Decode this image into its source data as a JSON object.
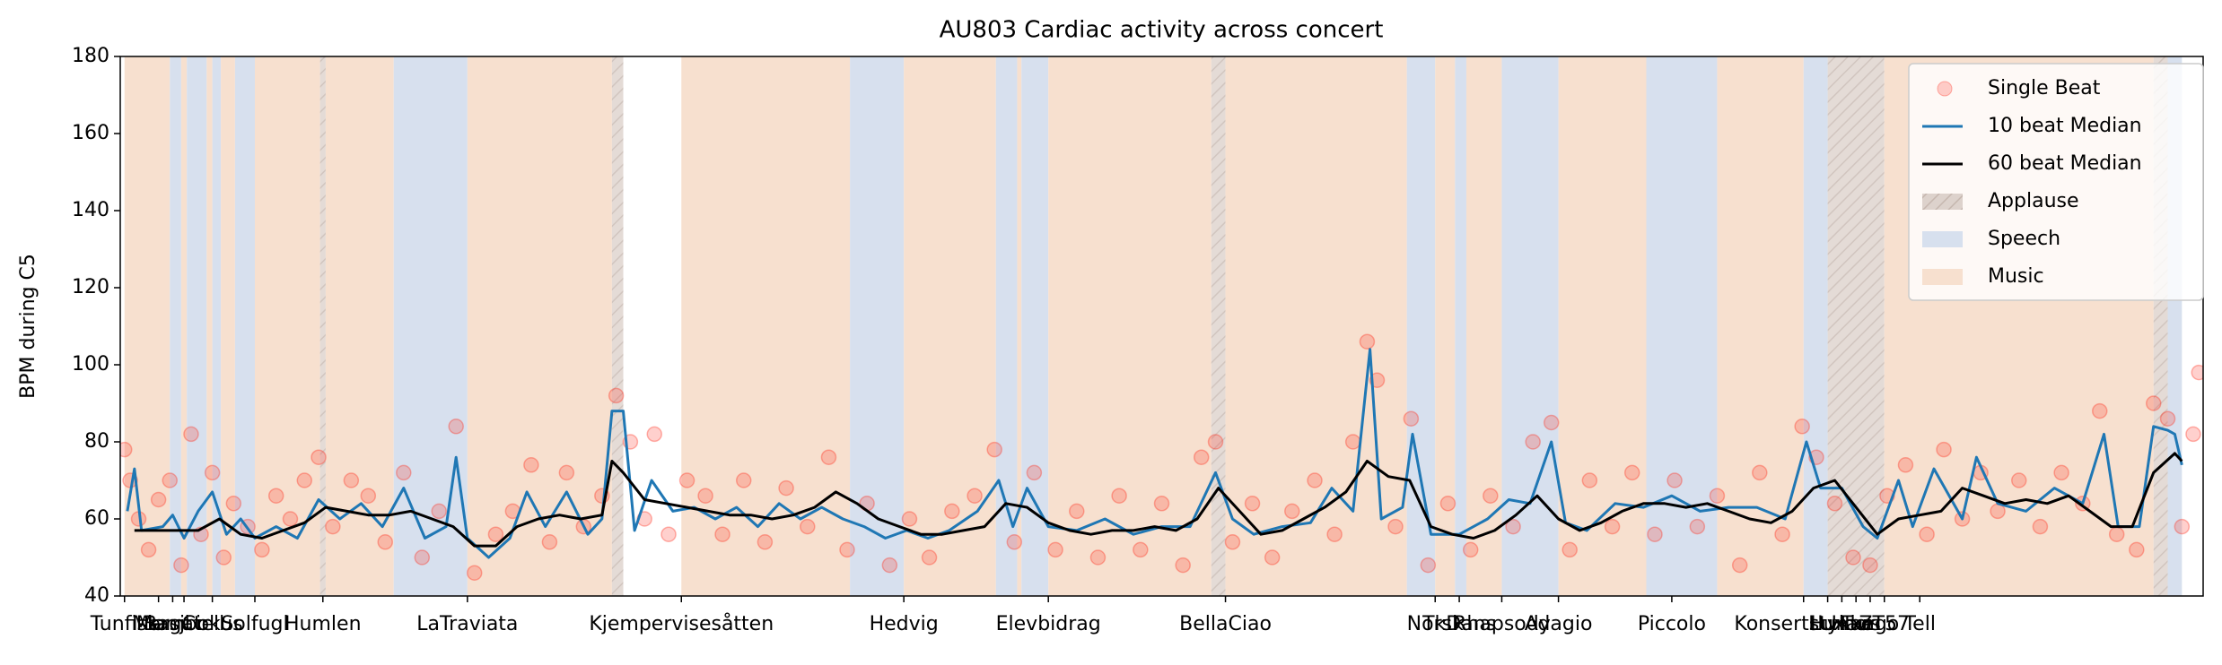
{
  "chart_data": {
    "type": "line",
    "title": "AU803 Cardiac activity across concert",
    "y_label": "BPM during C5",
    "ylim": [
      40,
      180
    ],
    "yticks": [
      40,
      60,
      80,
      100,
      120,
      140,
      160,
      180
    ],
    "xlim": [
      85,
      1555
    ],
    "xticks": [
      {
        "value": 88,
        "label": "Tunfisk"
      },
      {
        "value": 112,
        "label": "Marsj"
      },
      {
        "value": 122,
        "label": "Mambo"
      },
      {
        "value": 130,
        "label": "Bagatell"
      },
      {
        "value": 150,
        "label": "Cirkus"
      },
      {
        "value": 180,
        "label": "Solfugl"
      },
      {
        "value": 228,
        "label": "Humlen"
      },
      {
        "value": 330,
        "label": "LaTraviata"
      },
      {
        "value": 481,
        "label": "Kjempervisesåtten"
      },
      {
        "value": 638,
        "label": "Hedvig"
      },
      {
        "value": 740,
        "label": "Elevbidrag"
      },
      {
        "value": 865,
        "label": "BellaCiao"
      },
      {
        "value": 1013,
        "label": "Norsk"
      },
      {
        "value": 1030,
        "label": "TkDans"
      },
      {
        "value": 1060,
        "label": "Rhapsody"
      },
      {
        "value": 1100,
        "label": "Adagio"
      },
      {
        "value": 1180,
        "label": "Piccolo"
      },
      {
        "value": 1273,
        "label": "Konsertstykke"
      },
      {
        "value": 1290,
        "label": "Lux"
      },
      {
        "value": 1300,
        "label": "Humor"
      },
      {
        "value": 1310,
        "label": "Haus"
      },
      {
        "value": 1320,
        "label": "Tango"
      },
      {
        "value": 1330,
        "label": "ZT57"
      },
      {
        "value": 1355,
        "label": "Tell"
      }
    ],
    "region_types": [
      {
        "name": "Applause",
        "color": "#d9cbc4"
      },
      {
        "name": "Speech",
        "color": "#d7e0ee"
      },
      {
        "name": "Music",
        "color": "#f7e0cf"
      }
    ],
    "regions": [
      {
        "type": 2,
        "start": 88,
        "end": 120
      },
      {
        "type": 1,
        "start": 120,
        "end": 128
      },
      {
        "type": 2,
        "start": 128,
        "end": 132
      },
      {
        "type": 1,
        "start": 132,
        "end": 146
      },
      {
        "type": 2,
        "start": 146,
        "end": 150
      },
      {
        "type": 1,
        "start": 150,
        "end": 156
      },
      {
        "type": 2,
        "start": 156,
        "end": 166
      },
      {
        "type": 1,
        "start": 166,
        "end": 180
      },
      {
        "type": 2,
        "start": 180,
        "end": 226
      },
      {
        "type": 0,
        "start": 226,
        "end": 230
      },
      {
        "type": 2,
        "start": 230,
        "end": 278
      },
      {
        "type": 1,
        "start": 278,
        "end": 330
      },
      {
        "type": 2,
        "start": 330,
        "end": 432
      },
      {
        "type": 0,
        "start": 432,
        "end": 440
      },
      {
        "type": 2,
        "start": 481,
        "end": 600
      },
      {
        "type": 1,
        "start": 600,
        "end": 638
      },
      {
        "type": 2,
        "start": 638,
        "end": 703
      },
      {
        "type": 1,
        "start": 703,
        "end": 718
      },
      {
        "type": 2,
        "start": 718,
        "end": 721
      },
      {
        "type": 1,
        "start": 721,
        "end": 740
      },
      {
        "type": 2,
        "start": 740,
        "end": 855
      },
      {
        "type": 0,
        "start": 855,
        "end": 865
      },
      {
        "type": 2,
        "start": 865,
        "end": 993
      },
      {
        "type": 1,
        "start": 993,
        "end": 1013
      },
      {
        "type": 2,
        "start": 1013,
        "end": 1027
      },
      {
        "type": 1,
        "start": 1027,
        "end": 1035
      },
      {
        "type": 2,
        "start": 1035,
        "end": 1060
      },
      {
        "type": 1,
        "start": 1060,
        "end": 1100
      },
      {
        "type": 2,
        "start": 1100,
        "end": 1162
      },
      {
        "type": 1,
        "start": 1162,
        "end": 1212
      },
      {
        "type": 2,
        "start": 1212,
        "end": 1273
      },
      {
        "type": 1,
        "start": 1273,
        "end": 1290
      },
      {
        "type": 0,
        "start": 1290,
        "end": 1330
      },
      {
        "type": 2,
        "start": 1330,
        "end": 1520
      },
      {
        "type": 0,
        "start": 1520,
        "end": 1530
      },
      {
        "type": 1,
        "start": 1530,
        "end": 1540
      }
    ],
    "series": [
      {
        "name": "Single Beat",
        "kind": "scatter",
        "color": "#ff2a1a",
        "x": [
          88,
          92,
          98,
          105,
          112,
          120,
          128,
          135,
          142,
          150,
          158,
          165,
          175,
          185,
          195,
          205,
          215,
          225,
          235,
          248,
          260,
          272,
          285,
          298,
          310,
          322,
          335,
          350,
          362,
          375,
          388,
          400,
          412,
          425,
          435,
          445,
          455,
          462,
          472,
          485,
          498,
          510,
          525,
          540,
          555,
          570,
          585,
          598,
          612,
          628,
          642,
          656,
          672,
          688,
          702,
          716,
          730,
          745,
          760,
          775,
          790,
          805,
          820,
          835,
          848,
          858,
          870,
          884,
          898,
          912,
          928,
          942,
          955,
          965,
          972,
          985,
          996,
          1008,
          1022,
          1038,
          1052,
          1068,
          1082,
          1095,
          1108,
          1122,
          1138,
          1152,
          1168,
          1182,
          1198,
          1212,
          1228,
          1242,
          1258,
          1272,
          1282,
          1295,
          1308,
          1320,
          1332,
          1345,
          1360,
          1372,
          1385,
          1398,
          1410,
          1425,
          1440,
          1455,
          1470,
          1482,
          1494,
          1508,
          1520,
          1530,
          1540,
          1548,
          1552
        ],
        "values": [
          78,
          70,
          60,
          52,
          65,
          70,
          48,
          82,
          56,
          72,
          50,
          64,
          58,
          52,
          66,
          60,
          70,
          76,
          58,
          70,
          66,
          54,
          72,
          50,
          62,
          84,
          46,
          56,
          62,
          74,
          54,
          72,
          58,
          66,
          92,
          80,
          60,
          82,
          56,
          70,
          66,
          56,
          70,
          54,
          68,
          58,
          76,
          52,
          64,
          48,
          60,
          50,
          62,
          66,
          78,
          54,
          72,
          52,
          62,
          50,
          66,
          52,
          64,
          48,
          76,
          80,
          54,
          64,
          50,
          62,
          70,
          56,
          80,
          106,
          96,
          58,
          86,
          48,
          64,
          52,
          66,
          58,
          80,
          85,
          52,
          70,
          58,
          72,
          56,
          70,
          58,
          66,
          48,
          72,
          56,
          84,
          76,
          64,
          50,
          48,
          66,
          74,
          56,
          78,
          60,
          72,
          62,
          70,
          58,
          72,
          64,
          88,
          56,
          52,
          90,
          86,
          58,
          82,
          98
        ]
      },
      {
        "name": "10 beat Median",
        "kind": "line",
        "color": "#1f77b4",
        "x": [
          90,
          95,
          100,
          115,
          122,
          130,
          140,
          150,
          160,
          170,
          180,
          195,
          210,
          225,
          240,
          255,
          270,
          285,
          300,
          315,
          322,
          330,
          345,
          360,
          372,
          385,
          400,
          415,
          425,
          432,
          440,
          448,
          460,
          475,
          490,
          505,
          520,
          535,
          550,
          565,
          580,
          595,
          610,
          625,
          640,
          655,
          670,
          690,
          705,
          715,
          725,
          740,
          760,
          780,
          800,
          820,
          840,
          858,
          870,
          885,
          905,
          925,
          940,
          955,
          967,
          975,
          990,
          997,
          1010,
          1030,
          1050,
          1065,
          1080,
          1095,
          1105,
          1120,
          1140,
          1160,
          1180,
          1200,
          1220,
          1240,
          1260,
          1275,
          1285,
          1300,
          1315,
          1325,
          1340,
          1350,
          1365,
          1385,
          1395,
          1410,
          1430,
          1450,
          1470,
          1485,
          1495,
          1510,
          1520,
          1530,
          1535,
          1540
        ],
        "values": [
          62,
          73,
          57,
          58,
          61,
          55,
          62,
          67,
          56,
          60,
          55,
          58,
          55,
          65,
          60,
          64,
          58,
          68,
          55,
          58,
          76,
          55,
          50,
          55,
          67,
          58,
          67,
          56,
          60,
          88,
          88,
          57,
          70,
          62,
          63,
          60,
          63,
          58,
          64,
          60,
          63,
          60,
          58,
          55,
          57,
          55,
          57,
          62,
          70,
          58,
          68,
          58,
          57,
          60,
          56,
          58,
          58,
          72,
          60,
          56,
          58,
          59,
          68,
          62,
          104,
          60,
          63,
          82,
          56,
          56,
          60,
          65,
          64,
          80,
          59,
          57,
          64,
          63,
          66,
          62,
          63,
          63,
          60,
          80,
          68,
          68,
          58,
          55,
          70,
          58,
          73,
          60,
          76,
          64,
          62,
          68,
          64,
          82,
          58,
          58,
          84,
          83,
          82,
          74
        ]
      },
      {
        "name": "60 beat Median",
        "kind": "line",
        "color": "#000000",
        "x": [
          95,
          110,
          125,
          140,
          155,
          170,
          185,
          200,
          215,
          230,
          245,
          260,
          275,
          290,
          305,
          320,
          335,
          350,
          365,
          380,
          395,
          410,
          425,
          432,
          440,
          455,
          470,
          485,
          500,
          515,
          530,
          545,
          560,
          575,
          590,
          605,
          620,
          635,
          650,
          665,
          680,
          695,
          710,
          725,
          740,
          755,
          770,
          785,
          800,
          815,
          830,
          845,
          860,
          875,
          890,
          905,
          920,
          935,
          950,
          965,
          980,
          995,
          1010,
          1025,
          1040,
          1055,
          1070,
          1085,
          1100,
          1115,
          1130,
          1145,
          1160,
          1175,
          1190,
          1205,
          1220,
          1235,
          1250,
          1265,
          1280,
          1295,
          1310,
          1325,
          1340,
          1355,
          1370,
          1385,
          1400,
          1415,
          1430,
          1445,
          1460,
          1475,
          1490,
          1505,
          1520,
          1535,
          1540
        ],
        "values": [
          57,
          57,
          57,
          57,
          60,
          56,
          55,
          57,
          59,
          63,
          62,
          61,
          61,
          62,
          60,
          58,
          53,
          53,
          58,
          60,
          61,
          60,
          61,
          75,
          72,
          65,
          64,
          63,
          62,
          61,
          61,
          60,
          61,
          63,
          67,
          64,
          60,
          58,
          56,
          56,
          57,
          58,
          64,
          63,
          59,
          57,
          56,
          57,
          57,
          58,
          57,
          60,
          68,
          62,
          56,
          57,
          60,
          63,
          67,
          75,
          71,
          70,
          58,
          56,
          55,
          57,
          61,
          66,
          60,
          57,
          59,
          62,
          64,
          64,
          63,
          64,
          62,
          60,
          59,
          62,
          68,
          70,
          63,
          56,
          60,
          61,
          62,
          68,
          66,
          64,
          65,
          64,
          66,
          62,
          58,
          58,
          72,
          77,
          75
        ]
      }
    ]
  }
}
